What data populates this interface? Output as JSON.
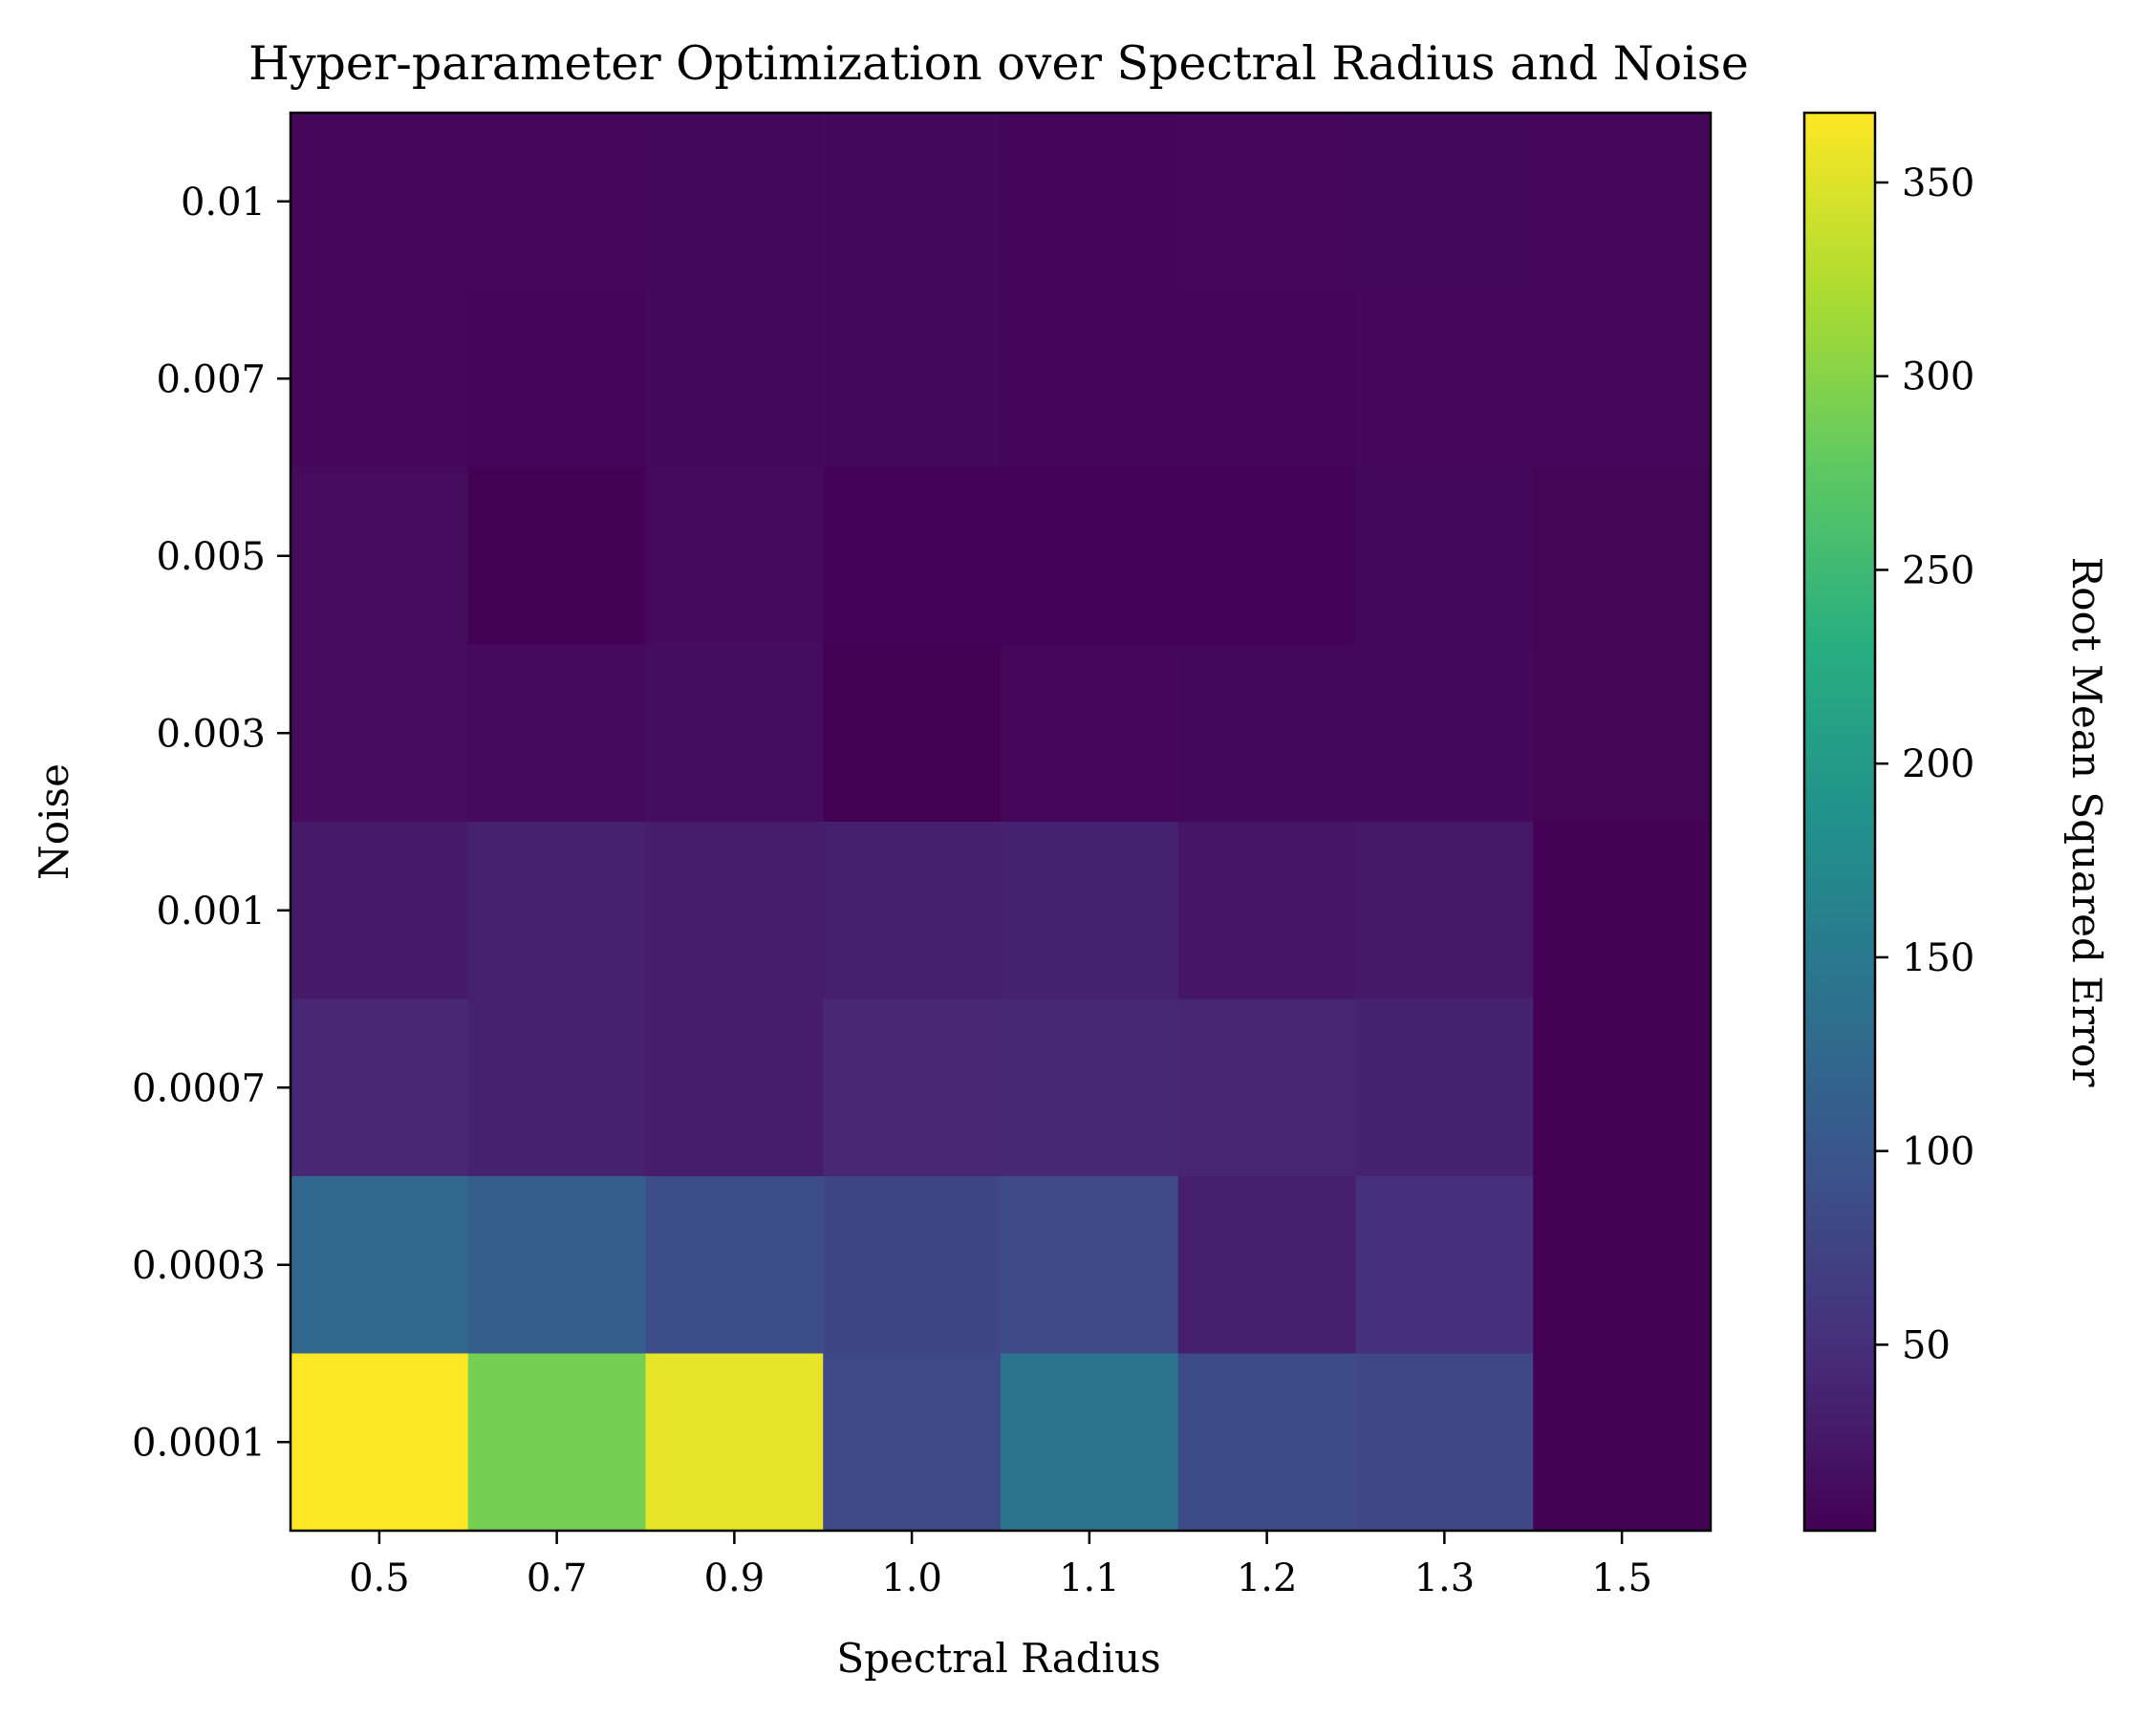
{
  "chart_data": {
    "type": "heatmap",
    "title": "Hyper-parameter Optimization over Spectral Radius and Noise",
    "xlabel": "Spectral Radius",
    "ylabel": "Noise",
    "x_categories": [
      "0.5",
      "0.7",
      "0.9",
      "1.0",
      "1.1",
      "1.2",
      "1.3",
      "1.5"
    ],
    "y_categories": [
      "0.01",
      "0.007",
      "0.005",
      "0.003",
      "0.001",
      "0.0007",
      "0.0003",
      "0.0001"
    ],
    "values": [
      [
        8,
        8,
        9,
        10,
        7,
        8,
        9,
        8
      ],
      [
        8,
        7,
        9,
        10,
        7,
        7,
        8,
        8
      ],
      [
        12,
        3,
        11,
        4,
        4,
        4,
        9,
        6
      ],
      [
        12,
        11,
        14,
        2,
        8,
        9,
        10,
        6
      ],
      [
        28,
        35,
        30,
        32,
        37,
        24,
        26,
        2
      ],
      [
        42,
        35,
        30,
        42,
        43,
        40,
        37,
        2
      ],
      [
        127,
        110,
        88,
        78,
        82,
        32,
        50,
        2
      ],
      [
        368,
        290,
        355,
        82,
        140,
        85,
        80,
        2
      ]
    ],
    "colorbar": {
      "label": "Root Mean Squared Error",
      "range": [
        2,
        368
      ],
      "ticks": [
        50,
        100,
        150,
        200,
        250,
        300,
        350
      ],
      "colormap": "viridis"
    }
  }
}
